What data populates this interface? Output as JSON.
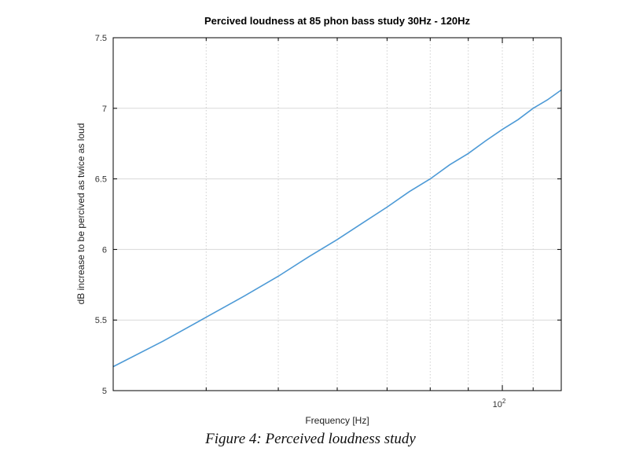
{
  "chart_data": {
    "type": "line",
    "title": "Percived loudness at 85 phon bass study 30Hz - 120Hz",
    "xlabel": "Frequency [Hz]",
    "ylabel": "dB increase to be percived as twice as loud",
    "x_scale": "log",
    "xlim": [
      30,
      120
    ],
    "ylim": [
      5,
      7.5
    ],
    "y_ticks": [
      "5",
      "5.5",
      "6",
      "6.5",
      "7",
      "7.5"
    ],
    "x_tick_label": {
      "base": "10",
      "exponent": "2"
    },
    "grid": true,
    "series": [
      {
        "color": "#4d9ad6",
        "x": [
          30,
          35,
          40,
          45,
          50,
          55,
          60,
          65,
          70,
          75,
          80,
          85,
          90,
          95,
          100,
          105,
          110,
          115,
          120
        ],
        "y": [
          5.17,
          5.35,
          5.52,
          5.67,
          5.81,
          5.95,
          6.07,
          6.19,
          6.3,
          6.41,
          6.5,
          6.6,
          6.68,
          6.77,
          6.85,
          6.92,
          7.0,
          7.06,
          7.13
        ]
      }
    ]
  },
  "caption": "Figure 4: Perceived loudness study"
}
